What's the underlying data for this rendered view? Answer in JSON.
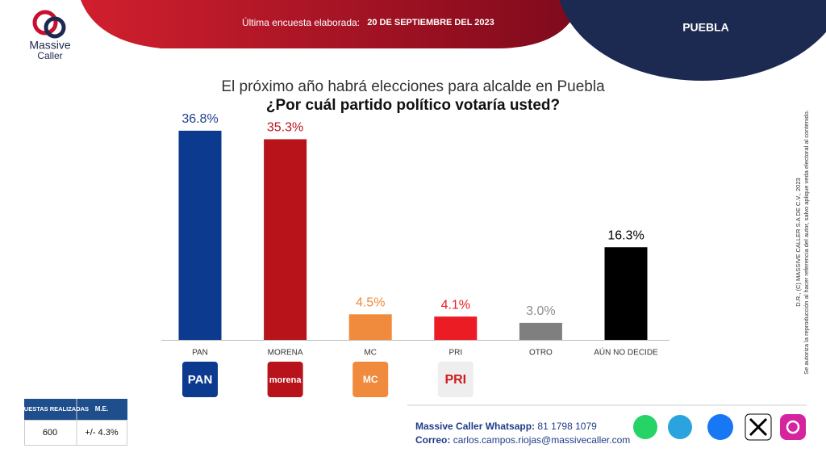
{
  "brand": {
    "name_line1": "Massive",
    "name_line2": "Caller"
  },
  "header": {
    "survey_label": "Última encuesta elaborada:",
    "survey_date": "20 DE SEPTIEMBRE DEL 2023",
    "region": "PUEBLA"
  },
  "chart_data": {
    "type": "bar",
    "title": "El próximo año habrá elecciones para alcalde en Puebla",
    "subtitle": "¿Por cuál partido político votaría usted?",
    "categories": [
      "PAN",
      "MORENA",
      "MC",
      "PRI",
      "OTRO",
      "AÚN NO DECIDE"
    ],
    "values": [
      36.8,
      35.3,
      4.5,
      4.1,
      3.0,
      16.3
    ],
    "value_labels": [
      "36.8%",
      "35.3%",
      "4.5%",
      "4.1%",
      "3.0%",
      "16.3%"
    ],
    "colors": [
      "#0b3a8f",
      "#b8121b",
      "#f08a3c",
      "#ec1c24",
      "#7f7f7f",
      "#000000"
    ],
    "label_colors": [
      "#1f3f8f",
      "#b8121b",
      "#f08a3c",
      "#ec1c24",
      "#8c8c8c",
      "#000000"
    ]
  },
  "party_logos": [
    "PAN",
    "morena",
    "MC",
    "PRI"
  ],
  "legal": [
    "D.R., (C) MASSIVE CALLER S.A DE C.V., 2023",
    "Se autoriza la reproducción al hacer referencia del autor, salvo aplique veda electoral al contenido."
  ],
  "stats_table": {
    "headers": [
      "ENCUESTAS REALIZADAS",
      "M.E."
    ],
    "row": [
      "600",
      "+/- 4.3%"
    ]
  },
  "footer": {
    "whatsapp_label": "Massive Caller Whatsapp:",
    "whatsapp": "81 1798 1079",
    "email_label": "Correo:",
    "email": "carlos.campos.riojas@massivecaller.com"
  }
}
